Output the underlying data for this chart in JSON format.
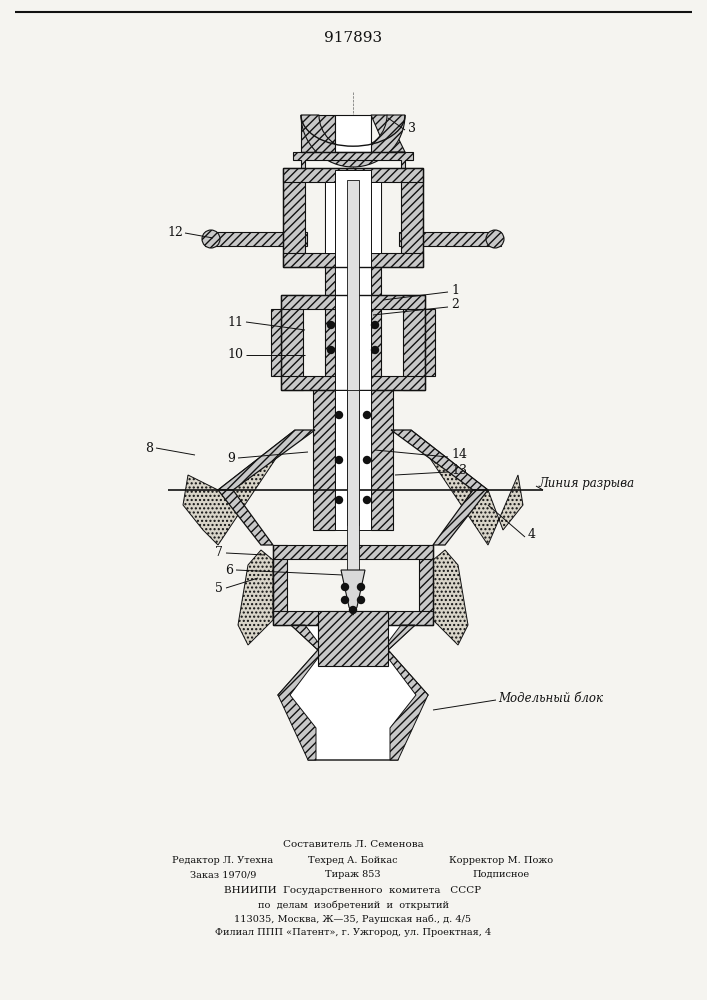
{
  "patent_number": "917893",
  "bg_color": "#f5f4f0",
  "line_color": "#111111",
  "top_text": "917893",
  "liniya_razryva_text": "Линия разрыва",
  "modelnyi_blok_text": "Модельный блок",
  "footer_line0": "Составитель Л. Семенова",
  "footer_line1a": "Редактор Л. Утехна",
  "footer_line1b": "Техред А. Бойкас",
  "footer_line1c": "Корректор М. Пожо",
  "footer_line2a": "Заказ 1970/9",
  "footer_line2b": "Тираж 853",
  "footer_line2c": "Подписное",
  "footer_line3": "ВНИИПИ  Государственного  комитета   СССР",
  "footer_line4": "по  делам  изобретений  и  открытий",
  "footer_line5": "113035, Москва, Ж—35, Раушская наб., д. 4/5",
  "footer_line6": "Филиал ППП «Патент», г. Ужгород, ул. Проектная, 4"
}
